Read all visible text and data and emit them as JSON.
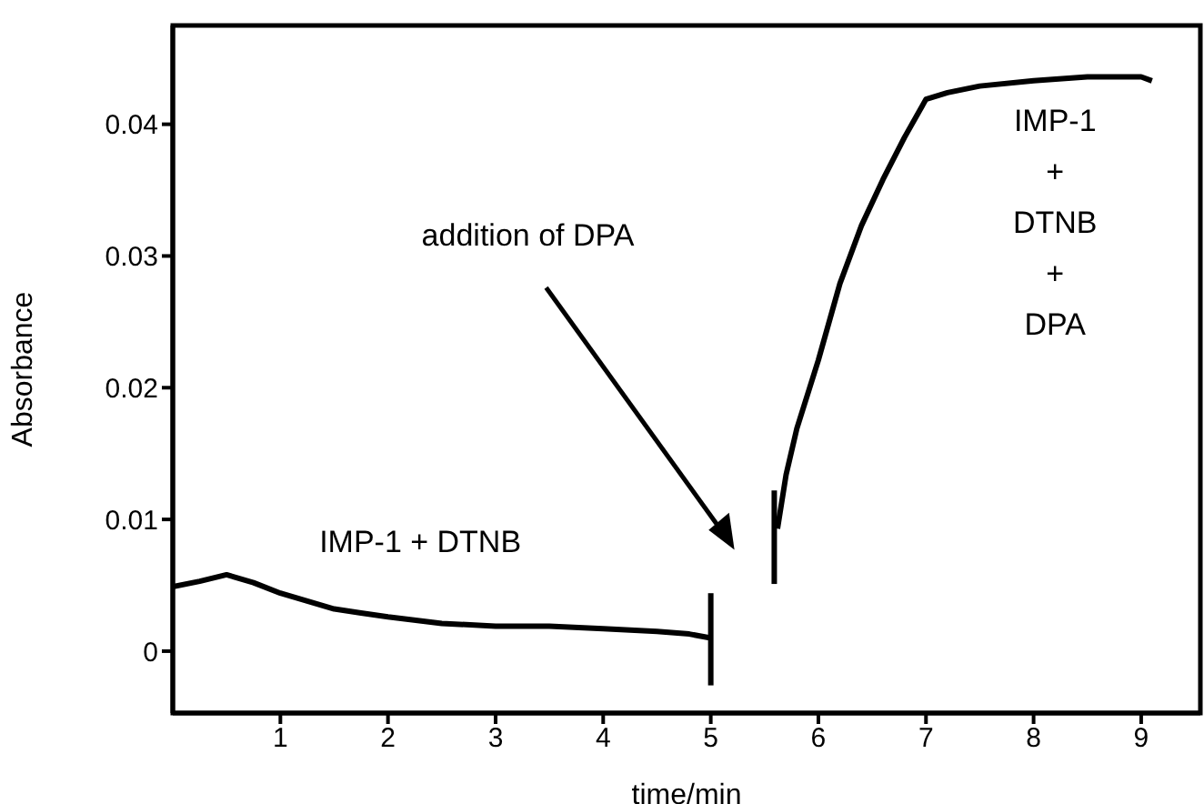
{
  "chart_data": {
    "type": "line",
    "xlabel": "time/min",
    "ylabel": "Absorbance",
    "xlim": [
      0,
      9.55
    ],
    "xticks": [
      1,
      2,
      3,
      4,
      5,
      6,
      7,
      8,
      9
    ],
    "ylim": [
      -0.0047,
      0.0475
    ],
    "yticks": [
      0,
      0.01,
      0.02,
      0.03,
      0.04
    ],
    "grid": false,
    "legend": false,
    "marker": "none",
    "line_style": "solid",
    "annotations": [
      "addition of DPA",
      "IMP-1 + DTNB",
      "IMP-1\n+\nDTNB\n+\nDPA"
    ],
    "series": [
      {
        "color": "#000000",
        "x": [
          0,
          0.25,
          0.5,
          0.75,
          1,
          1.25,
          1.5,
          1.75,
          2,
          2.5,
          3,
          3.5,
          4,
          4.5,
          4.8,
          5
        ],
        "values": [
          0.0049,
          0.0053,
          0.0058,
          0.0052,
          0.0044,
          0.0038,
          0.0032,
          0.0029,
          0.0026,
          0.0021,
          0.0019,
          0.0019,
          0.0017,
          0.0015,
          0.0013,
          0.001
        ]
      },
      {
        "color": "#000000",
        "x": [
          5.62,
          5.7,
          5.8,
          6,
          6.2,
          6.4,
          6.6,
          6.8,
          7,
          7.2,
          7.5,
          8,
          8.5,
          9,
          9.1
        ],
        "values": [
          0.0093,
          0.0134,
          0.0169,
          0.0221,
          0.0279,
          0.0323,
          0.0358,
          0.039,
          0.0419,
          0.0424,
          0.0429,
          0.0433,
          0.0436,
          0.0436,
          0.0433
        ]
      },
      {
        "color": "#000000",
        "x": [
          5,
          5
        ],
        "values": [
          0.0044,
          -0.0026
        ]
      },
      {
        "color": "#000000",
        "x": [
          5.59,
          5.59
        ],
        "values": [
          0.0122,
          0.0051
        ]
      }
    ]
  }
}
